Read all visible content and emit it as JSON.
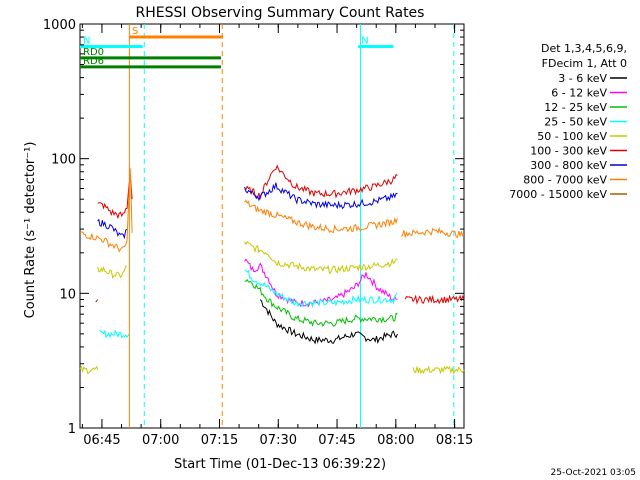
{
  "chart_data": {
    "type": "line",
    "title": "RHESSI Observing Summary Count Rates",
    "xlabel": "Start Time (01-Dec-13 06:39:22)",
    "ylabel": "Count Rate (s⁻¹ detector⁻¹)",
    "yscale": "log",
    "ylim": [
      1,
      1000
    ],
    "xlim_minutes": [
      0,
      98
    ],
    "x_ticks": [
      {
        "label": "06:45",
        "min": 5.6
      },
      {
        "label": "07:00",
        "min": 20.6
      },
      {
        "label": "07:15",
        "min": 35.6
      },
      {
        "label": "07:30",
        "min": 50.6
      },
      {
        "label": "07:45",
        "min": 65.6
      },
      {
        "label": "08:00",
        "min": 80.6
      },
      {
        "label": "08:15",
        "min": 95.6
      }
    ],
    "y_ticks": [
      {
        "label": "1",
        "value": 1
      },
      {
        "label": "10",
        "value": 10
      },
      {
        "label": "100",
        "value": 100
      },
      {
        "label": "1000",
        "value": 1000
      }
    ],
    "grid": false,
    "legend": {
      "position": "right",
      "header": [
        "Det 1,3,4,5,6,9,",
        "FDecim 1, Att 0"
      ],
      "entries": [
        {
          "label": "3 - 6 keV",
          "color": "#000000"
        },
        {
          "label": "6 - 12 keV",
          "color": "#ff00ff"
        },
        {
          "label": "12 - 25 keV",
          "color": "#00c000"
        },
        {
          "label": "25 - 50 keV",
          "color": "#00ffff"
        },
        {
          "label": "50 - 100 keV",
          "color": "#c8c800"
        },
        {
          "label": "100 - 300 keV",
          "color": "#e00000"
        },
        {
          "label": "300 - 800 keV",
          "color": "#0000e0"
        },
        {
          "label": "800 - 7000 keV",
          "color": "#ff8000"
        },
        {
          "label": "7000 - 15000 keV",
          "color": "#a06000"
        }
      ]
    },
    "series": [
      {
        "name": "3 - 6 keV",
        "color": "#000000",
        "segments": [
          {
            "x": [
              46,
              50,
              55,
              60,
              65,
              70,
              75,
              80,
              81
            ],
            "y": [
              9,
              6,
              5,
              4.5,
              4.5,
              5,
              4.5,
              5,
              5
            ]
          }
        ]
      },
      {
        "name": "6 - 12 keV",
        "color": "#ff00ff",
        "segments": [
          {
            "x": [
              42,
              44,
              46,
              48,
              50,
              55,
              60,
              65,
              70,
              73,
              76,
              80,
              81
            ],
            "y": [
              18,
              15,
              16,
              13,
              10,
              8.5,
              8.5,
              9,
              11,
              14,
              11,
              9,
              9
            ]
          }
        ]
      },
      {
        "name": "12 - 25 keV",
        "color": "#00c000",
        "segments": [
          {
            "x": [
              42,
              44,
              46,
              48,
              50,
              55,
              60,
              65,
              70,
              75,
              80,
              81
            ],
            "y": [
              13,
              12,
              10.5,
              9,
              8,
              6.5,
              6,
              6,
              6.5,
              6.5,
              6.5,
              7
            ]
          }
        ]
      },
      {
        "name": "25 - 50 keV",
        "color": "#00ffff",
        "segments": [
          {
            "x": [
              5,
              12,
              12.5
            ],
            "y": [
              5,
              5,
              5
            ]
          },
          {
            "x": [
              42,
              44,
              46,
              48,
              50,
              55,
              60,
              65,
              70,
              75,
              80,
              81
            ],
            "y": [
              15,
              13,
              12,
              11,
              10,
              8.5,
              8.5,
              8.5,
              9,
              9,
              9,
              10
            ]
          }
        ]
      },
      {
        "name": "50 - 100 keV",
        "color": "#c8c800",
        "segments": [
          {
            "x": [
              0,
              4,
              4.5
            ],
            "y": [
              2.7,
              2.7,
              2.7
            ]
          },
          {
            "x": [
              4.5,
              6,
              8,
              10,
              11,
              12
            ],
            "y": [
              15,
              15,
              14,
              13.5,
              14,
              16
            ]
          },
          {
            "x": [
              42,
              44,
              46,
              48,
              50,
              55,
              60,
              65,
              70,
              75,
              80,
              81
            ],
            "y": [
              24,
              22,
              21,
              20,
              17,
              16,
              15,
              15,
              15.5,
              16,
              17,
              18
            ]
          },
          {
            "x": [
              85,
              90,
              95,
              98
            ],
            "y": [
              2.7,
              2.7,
              2.7,
              2.7
            ]
          }
        ]
      },
      {
        "name": "100 - 300 keV",
        "color": "#e00000",
        "segments": [
          {
            "x": [
              4,
              4.5
            ],
            "y": [
              9,
              9
            ]
          },
          {
            "x": [
              4.5,
              6,
              8,
              10,
              11,
              12,
              12.8,
              13.3
            ],
            "y": [
              46,
              45,
              40,
              38,
              38,
              44,
              80,
              50
            ]
          },
          {
            "x": [
              42,
              44,
              46,
              48,
              50,
              55,
              60,
              65,
              70,
              75,
              80,
              81
            ],
            "y": [
              60,
              57,
              53,
              70,
              88,
              62,
              55,
              55,
              58,
              62,
              70,
              75
            ]
          },
          {
            "x": [
              83,
              85,
              90,
              95,
              98
            ],
            "y": [
              9,
              9,
              9,
              9,
              9
            ]
          }
        ]
      },
      {
        "name": "300 - 800 keV",
        "color": "#0000e0",
        "segments": [
          {
            "x": [
              4.5,
              6,
              8,
              10,
              11,
              12
            ],
            "y": [
              34,
              33,
              31,
              27,
              26,
              30
            ]
          },
          {
            "x": [
              42,
              44,
              46,
              48,
              50,
              55,
              60,
              65,
              70,
              75,
              80,
              81
            ],
            "y": [
              60,
              55,
              52,
              57,
              63,
              50,
              46,
              45,
              46,
              48,
              52,
              55
            ]
          }
        ]
      },
      {
        "name": "800 - 7000 keV",
        "color": "#ff8000",
        "segments": [
          {
            "x": [
              0,
              2,
              4,
              6,
              8,
              10,
              11,
              12,
              12.8,
              13.3
            ],
            "y": [
              28,
              27,
              26,
              25,
              23,
              21.5,
              21,
              24,
              90,
              28
            ]
          },
          {
            "x": [
              42,
              44,
              46,
              48,
              50,
              55,
              60,
              65,
              70,
              75,
              80,
              81
            ],
            "y": [
              48,
              44,
              41,
              40,
              38,
              34,
              31,
              30,
              30.5,
              32,
              34,
              36
            ]
          },
          {
            "x": [
              82,
              85,
              90,
              95,
              98
            ],
            "y": [
              28,
              28,
              29,
              28,
              27
            ]
          }
        ]
      },
      {
        "name": "7000 - 15000 keV",
        "color": "#a06000",
        "segments": []
      }
    ],
    "markers": {
      "attenuator_bars": [
        {
          "label": "S",
          "color": "#ff8000",
          "from_min": 12.5,
          "to_min": 36.5,
          "value": 800
        },
        {
          "label": "N",
          "color": "#00ffff",
          "from_min": 0,
          "to_min": 16,
          "value": 680
        },
        {
          "label": "N",
          "color": "#00ffff",
          "from_min": 71,
          "to_min": 80,
          "value": 680
        }
      ],
      "decimation_bars": [
        {
          "label": "RD0",
          "color": "#008000",
          "from_min": 0,
          "to_min": 36,
          "value": 560
        },
        {
          "label": "RD6",
          "color": "#008000",
          "from_min": 0,
          "to_min": 36,
          "value": 480
        }
      ],
      "vlines": [
        {
          "min": 12.6,
          "color": "#ff8000",
          "style": "solid"
        },
        {
          "min": 16.4,
          "color": "#00ffff",
          "style": "dashed"
        },
        {
          "min": 36.3,
          "color": "#ff8000",
          "style": "dashed"
        },
        {
          "min": 71.6,
          "color": "#00ffff",
          "style": "solid"
        },
        {
          "min": 95.4,
          "color": "#00ffff",
          "style": "dashed"
        }
      ]
    },
    "footer_date": "25-Oct-2021 03:05"
  }
}
